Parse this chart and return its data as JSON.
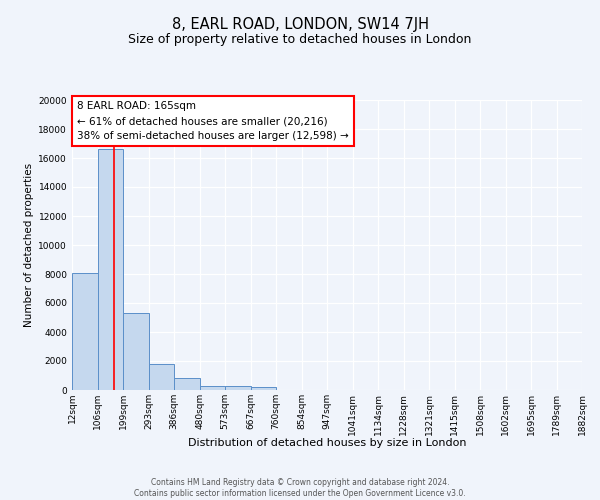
{
  "title": "8, EARL ROAD, LONDON, SW14 7JH",
  "subtitle": "Size of property relative to detached houses in London",
  "xlabel": "Distribution of detached houses by size in London",
  "ylabel": "Number of detached properties",
  "bin_edges": [
    12,
    106,
    199,
    293,
    386,
    480,
    573,
    667,
    760,
    854,
    947,
    1041,
    1134,
    1228,
    1321,
    1415,
    1508,
    1602,
    1695,
    1789,
    1882
  ],
  "bar_heights": [
    8100,
    16600,
    5300,
    1800,
    800,
    300,
    300,
    200,
    0,
    0,
    0,
    0,
    0,
    0,
    0,
    0,
    0,
    0,
    0,
    0
  ],
  "bar_color": "#c5d8ee",
  "bar_edge_color": "#5b8fc9",
  "bar_edge_width": 0.7,
  "red_line_x": 165,
  "ylim_max": 20000,
  "yticks": [
    0,
    2000,
    4000,
    6000,
    8000,
    10000,
    12000,
    14000,
    16000,
    18000,
    20000
  ],
  "annotation_line1": "8 EARL ROAD: 165sqm",
  "annotation_line2": "← 61% of detached houses are smaller (20,216)",
  "annotation_line3": "38% of semi-detached houses are larger (12,598) →",
  "footer_line1": "Contains HM Land Registry data © Crown copyright and database right 2024.",
  "footer_line2": "Contains public sector information licensed under the Open Government Licence v3.0.",
  "background_color": "#f0f4fb",
  "grid_color": "#ffffff",
  "title_fontsize": 10.5,
  "subtitle_fontsize": 9,
  "xlabel_fontsize": 8,
  "ylabel_fontsize": 7.5,
  "tick_fontsize": 6.5,
  "footer_fontsize": 5.5,
  "annot_fontsize": 7.5
}
